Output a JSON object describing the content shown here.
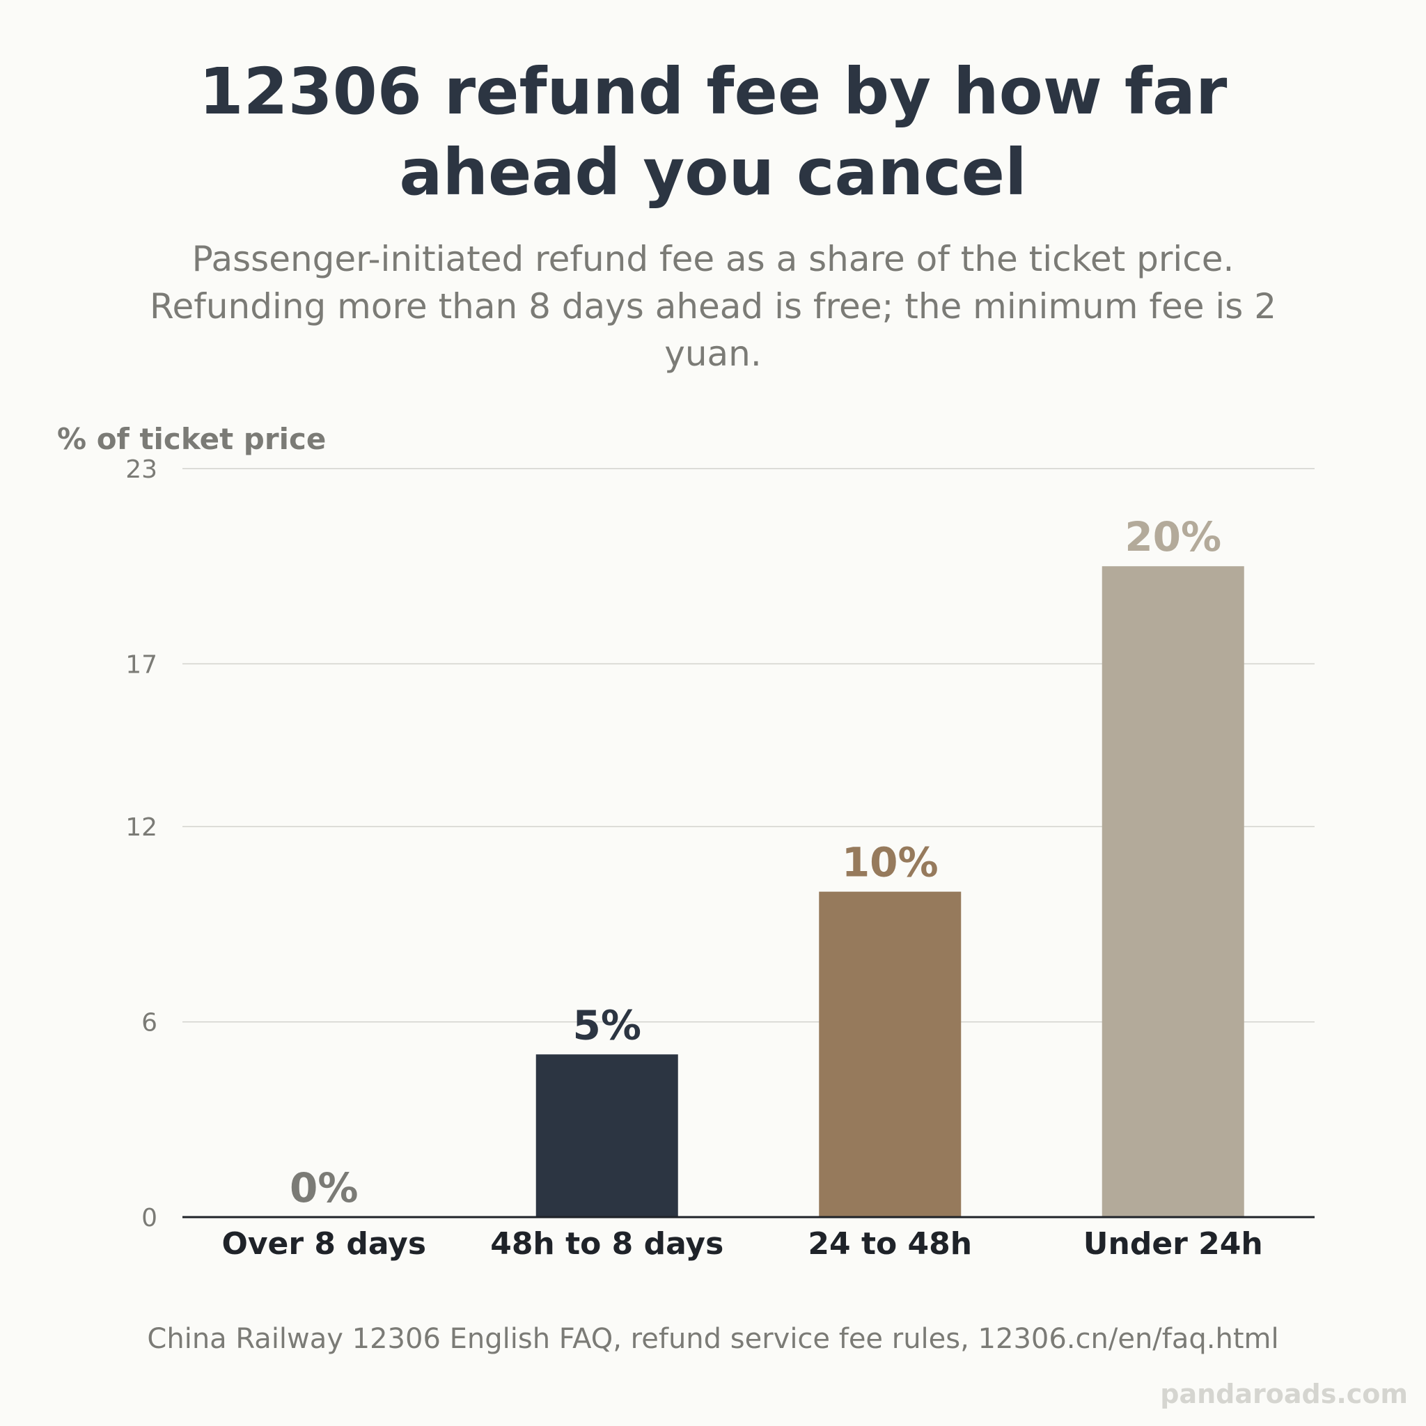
{
  "title": "12306 refund fee by how far ahead you cancel",
  "subtitle": "Passenger-initiated refund fee as a share of the ticket price. Refunding more than 8 days ahead is free; the minimum fee is 2 yuan.",
  "source": "China Railway 12306 English FAQ, refund service fee rules, 12306.cn/en/faq.html",
  "watermark": "pandaroads.com",
  "chart_data": {
    "type": "bar",
    "title": "12306 refund fee by how far ahead you cancel",
    "ylabel": "% of ticket price",
    "xlabel": "",
    "categories": [
      "Over 8 days",
      "48h to 8 days",
      "24 to 48h",
      "Under 24h"
    ],
    "values": [
      0,
      5,
      10,
      20
    ],
    "value_labels": [
      "0%",
      "5%",
      "10%",
      "20%"
    ],
    "colors": [
      "#7b7b76",
      "#2c3542",
      "#967a5c",
      "#b3aa9a"
    ],
    "yticks": [
      0,
      6,
      12,
      17,
      23
    ],
    "ylim": [
      0,
      23
    ],
    "grid": true,
    "legend": "none"
  }
}
